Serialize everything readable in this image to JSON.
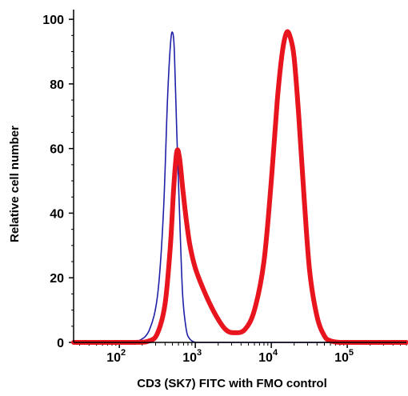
{
  "chart_data": {
    "type": "line",
    "title": "",
    "xlabel": "CD3 (SK7) FITC with FMO control",
    "ylabel": "Relative cell number",
    "x_scale": "log",
    "xlim": [
      25,
      600000
    ],
    "ylim": [
      0,
      103
    ],
    "x_ticks": [
      {
        "value": 100,
        "base": "10",
        "exp": "2"
      },
      {
        "value": 1000,
        "base": "10",
        "exp": "3"
      },
      {
        "value": 10000,
        "base": "10",
        "exp": "4"
      },
      {
        "value": 100000,
        "base": "10",
        "exp": "5"
      }
    ],
    "y_ticks": [
      {
        "value": 0,
        "label": "0"
      },
      {
        "value": 20,
        "label": "20"
      },
      {
        "value": 40,
        "label": "40"
      },
      {
        "value": 60,
        "label": "60"
      },
      {
        "value": 80,
        "label": "80"
      },
      {
        "value": 100,
        "label": "100"
      }
    ],
    "grid": false,
    "legend": "none",
    "series": [
      {
        "color": "#1f1fa8",
        "x": [
          25,
          120,
          180,
          250,
          320,
          380,
          430,
          470,
          500,
          530,
          570,
          620,
          680,
          760,
          850,
          1000,
          1200,
          2000,
          10000,
          100000,
          600000
        ],
        "y": [
          0,
          0,
          0.5,
          4,
          15,
          40,
          75,
          92,
          96,
          90,
          65,
          40,
          15,
          4,
          1,
          0,
          0,
          0,
          0,
          0,
          0
        ]
      },
      {
        "color": "#e8141e",
        "x": [
          25,
          150,
          250,
          320,
          400,
          470,
          520,
          570,
          620,
          680,
          760,
          850,
          1000,
          1300,
          1800,
          2500,
          3300,
          4500,
          6000,
          8000,
          10000,
          12000,
          14000,
          16000,
          18000,
          20000,
          23000,
          27000,
          32000,
          40000,
          50000,
          60000,
          80000,
          100000,
          600000
        ],
        "y": [
          0,
          0,
          0.5,
          3,
          12,
          30,
          48,
          59,
          57,
          48,
          38,
          30,
          23,
          16,
          9,
          4,
          3,
          4,
          10,
          25,
          50,
          75,
          90,
          96,
          94,
          88,
          70,
          45,
          22,
          8,
          2,
          0.5,
          0,
          0,
          0
        ]
      }
    ]
  }
}
